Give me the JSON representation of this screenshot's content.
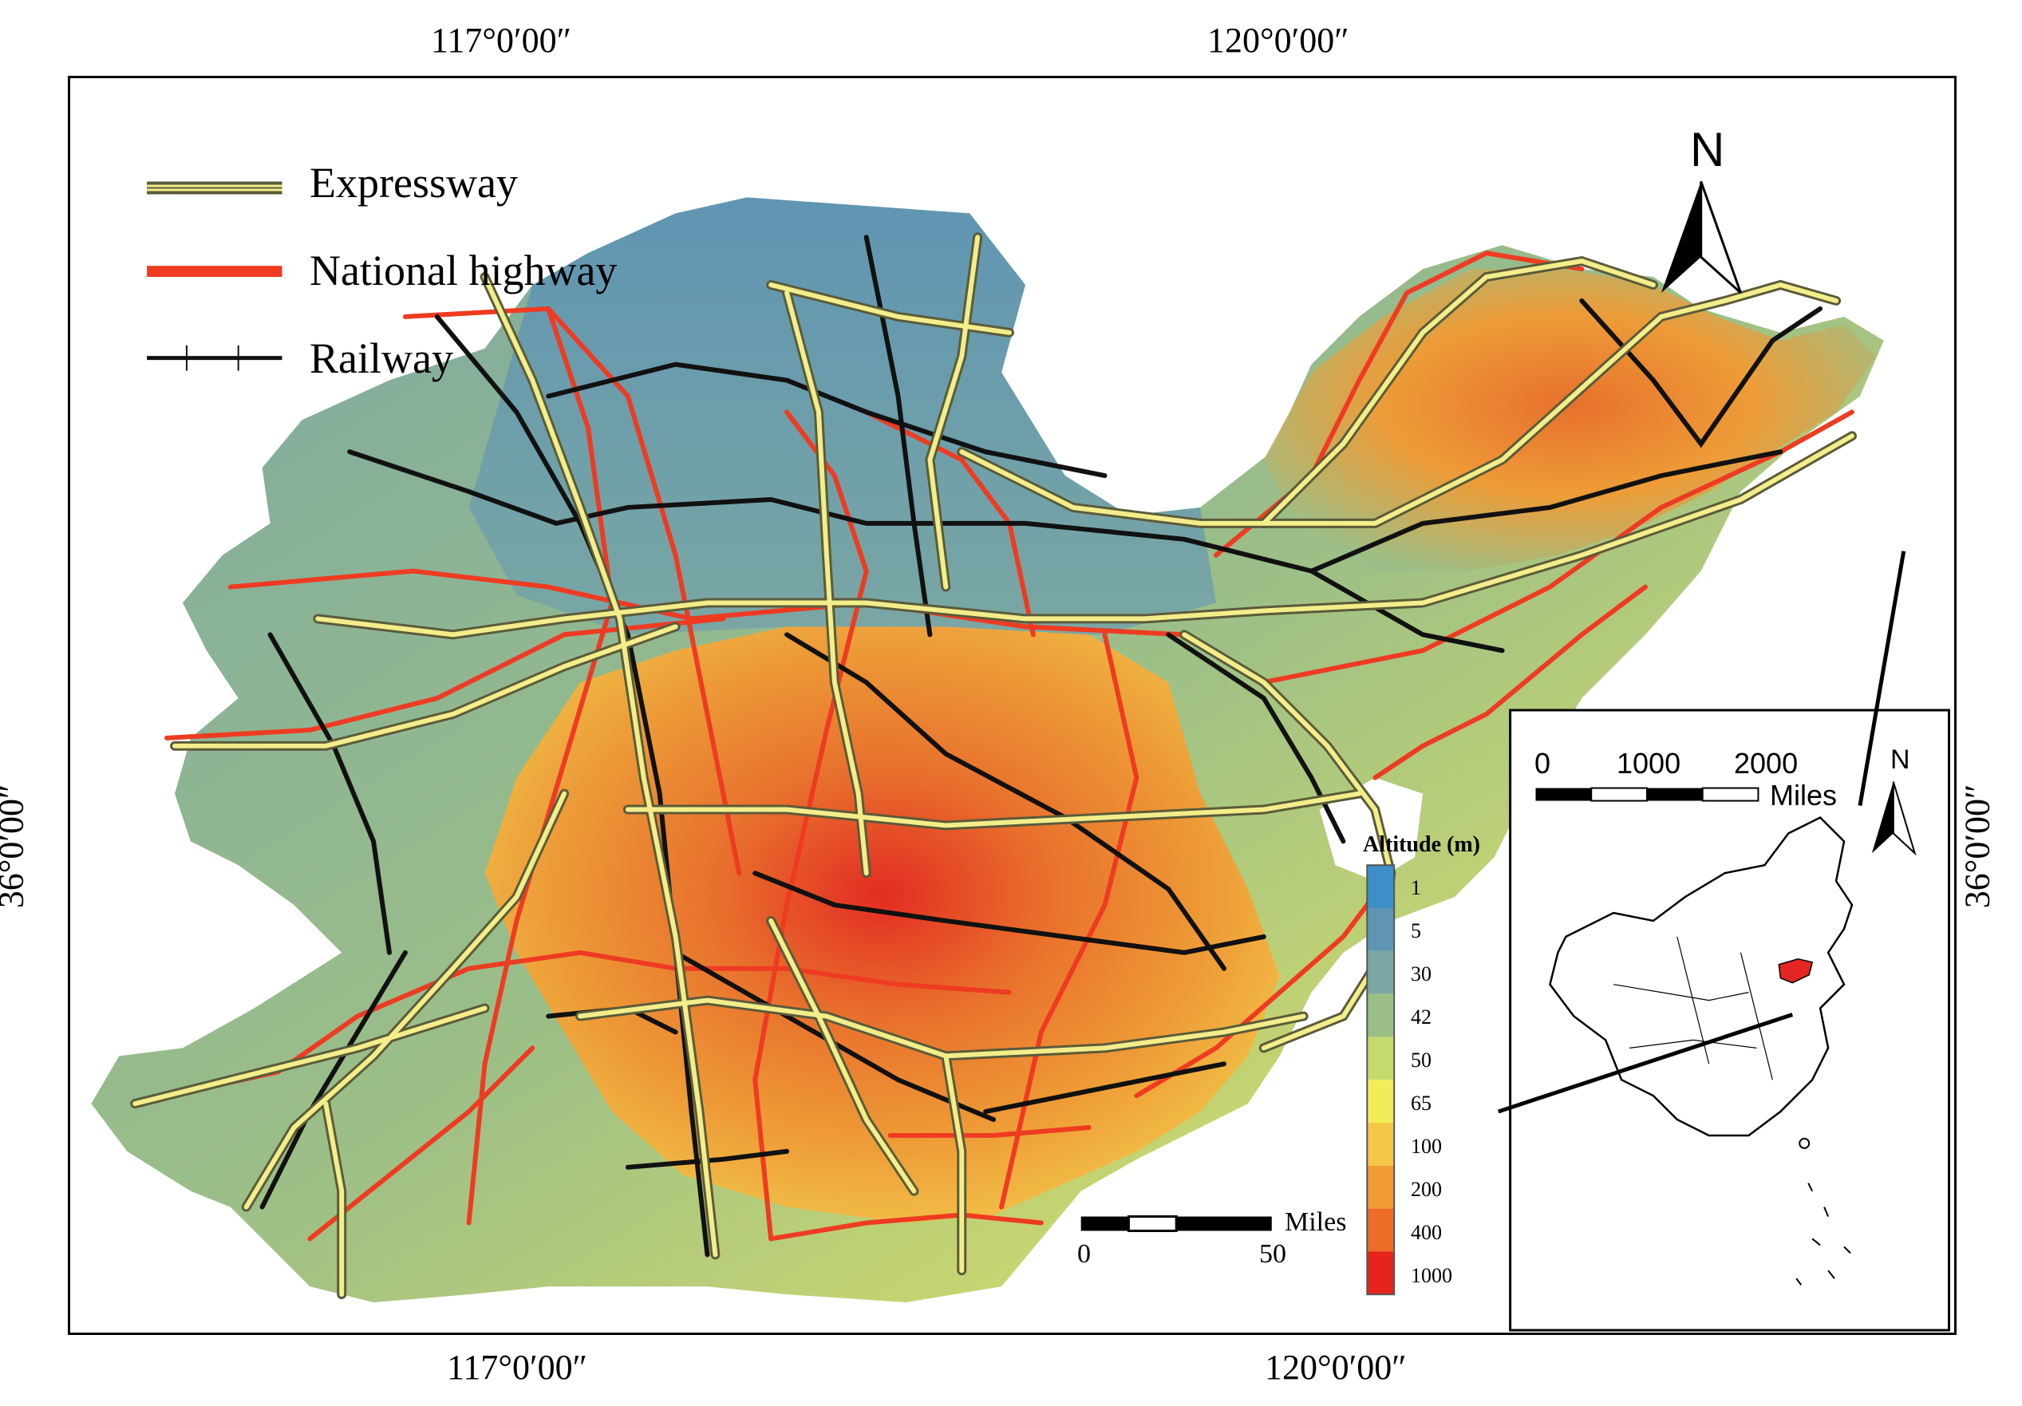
{
  "coords": {
    "top_left": "117°0′00″",
    "top_right": "120°0′00″",
    "bottom_left": "117°0′00″",
    "bottom_right": "120°0′00″",
    "left": "36°0′00″",
    "right": "36°0′00″"
  },
  "legend": {
    "expressway": "Expressway",
    "national_highway": "National highway",
    "railway": "Railway"
  },
  "north_arrow": {
    "label": "N"
  },
  "scale_bar": {
    "start": "0",
    "end": "50",
    "unit": "Miles"
  },
  "altitude_legend": {
    "title": "Altitude (m)",
    "classes": [
      {
        "label": "1",
        "color": "#3d8fc7"
      },
      {
        "label": "5",
        "color": "#5f95b3"
      },
      {
        "label": "30",
        "color": "#7aa7a3"
      },
      {
        "label": "42",
        "color": "#9cbf87"
      },
      {
        "label": "50",
        "color": "#c5da6c"
      },
      {
        "label": "65",
        "color": "#f3ec59"
      },
      {
        "label": "100",
        "color": "#f5c748"
      },
      {
        "label": "200",
        "color": "#f19a33"
      },
      {
        "label": "400",
        "color": "#ec6c28"
      },
      {
        "label": "1000",
        "color": "#e6241d"
      }
    ]
  },
  "inset": {
    "scale_labels": [
      "0",
      "1000",
      "2000"
    ],
    "scale_unit": "Miles",
    "north_label": "N",
    "highlight_color": "#e52521"
  },
  "colors": {
    "expressway_fill": "#f3ed8a",
    "expressway_edge": "#5b5b3a",
    "national_highway": "#ee3b22",
    "railway": "#111111"
  }
}
